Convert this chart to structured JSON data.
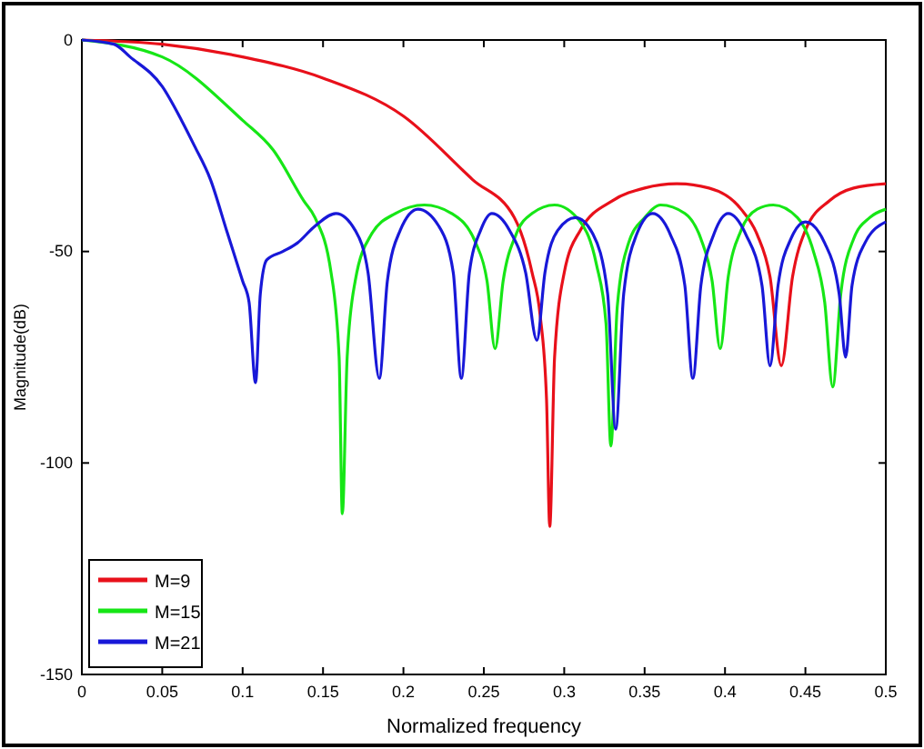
{
  "chart_data": {
    "type": "line",
    "xlabel": "Normalized frequency",
    "ylabel": "Magnitude(dB)",
    "xlim": [
      0,
      0.5
    ],
    "ylim": [
      -150,
      0
    ],
    "xticks": [
      0,
      0.05,
      0.1,
      0.15,
      0.2,
      0.25,
      0.3,
      0.35,
      0.4,
      0.45,
      0.5
    ],
    "yticks": [
      -150,
      -100,
      -50,
      0
    ],
    "grid": false,
    "legend": "bottom left",
    "marker": "none",
    "line_style": "solid",
    "series": [
      {
        "name": "M=9",
        "color": "#e8101a",
        "x": [
          0,
          0.05,
          0.1,
          0.15,
          0.2,
          0.243,
          0.269,
          0.28,
          0.285,
          0.289,
          0.291,
          0.294,
          0.3,
          0.31,
          0.33,
          0.35,
          0.37,
          0.39,
          0.41,
          0.42,
          0.428,
          0.435,
          0.442,
          0.45,
          0.465,
          0.48,
          0.5
        ],
        "values": [
          0,
          -1,
          -4,
          -9,
          -18,
          -33,
          -42,
          -55,
          -65,
          -85,
          -115,
          -75,
          -55,
          -45,
          -38,
          -35,
          -34,
          -35,
          -40,
          -46,
          -56,
          -77,
          -56,
          -45,
          -38,
          -35,
          -34
        ]
      },
      {
        "name": "M=15",
        "color": "#16e616",
        "x": [
          0,
          0.05,
          0.1,
          0.119,
          0.138,
          0.145,
          0.155,
          0.16,
          0.162,
          0.165,
          0.17,
          0.18,
          0.195,
          0.213,
          0.23,
          0.245,
          0.252,
          0.257,
          0.262,
          0.27,
          0.28,
          0.294,
          0.31,
          0.32,
          0.326,
          0.329,
          0.333,
          0.34,
          0.35,
          0.36,
          0.375,
          0.385,
          0.392,
          0.397,
          0.402,
          0.41,
          0.42,
          0.43,
          0.445,
          0.455,
          0.462,
          0.467,
          0.472,
          0.48,
          0.49,
          0.5
        ],
        "values": [
          0,
          -4,
          -19,
          -26,
          -38,
          -42,
          -55,
          -75,
          -112,
          -75,
          -57,
          -46,
          -41,
          -39,
          -41,
          -48,
          -57,
          -73,
          -57,
          -46,
          -41,
          -39,
          -43,
          -53,
          -67,
          -96,
          -63,
          -48,
          -42,
          -39,
          -41,
          -47,
          -57,
          -73,
          -56,
          -45,
          -40,
          -39,
          -42,
          -50,
          -62,
          -82,
          -60,
          -47,
          -42,
          -40
        ]
      },
      {
        "name": "M=21",
        "color": "#1818d8",
        "x": [
          0,
          0.02,
          0.03,
          0.05,
          0.062,
          0.07,
          0.08,
          0.09,
          0.1,
          0.104,
          0.108,
          0.111,
          0.115,
          0.125,
          0.134,
          0.145,
          0.158,
          0.17,
          0.178,
          0.185,
          0.19,
          0.198,
          0.209,
          0.222,
          0.231,
          0.236,
          0.241,
          0.248,
          0.255,
          0.266,
          0.276,
          0.283,
          0.288,
          0.296,
          0.307,
          0.318,
          0.327,
          0.332,
          0.337,
          0.345,
          0.355,
          0.366,
          0.375,
          0.38,
          0.385,
          0.393,
          0.402,
          0.413,
          0.423,
          0.428,
          0.433,
          0.441,
          0.45,
          0.462,
          0.471,
          0.475,
          0.479,
          0.487,
          0.5
        ],
        "values": [
          0,
          -1,
          -4,
          -11,
          -19,
          -25,
          -33,
          -45,
          -57,
          -62,
          -81,
          -60,
          -52,
          -50,
          -48,
          -44,
          -41,
          -45,
          -55,
          -80,
          -57,
          -45,
          -40,
          -44,
          -55,
          -80,
          -55,
          -45,
          -41,
          -45,
          -55,
          -71,
          -55,
          -45,
          -42,
          -46,
          -60,
          -92,
          -60,
          -46,
          -41,
          -46,
          -58,
          -80,
          -58,
          -46,
          -41,
          -46,
          -58,
          -77,
          -58,
          -47,
          -43,
          -48,
          -60,
          -75,
          -58,
          -48,
          -43
        ]
      }
    ]
  }
}
